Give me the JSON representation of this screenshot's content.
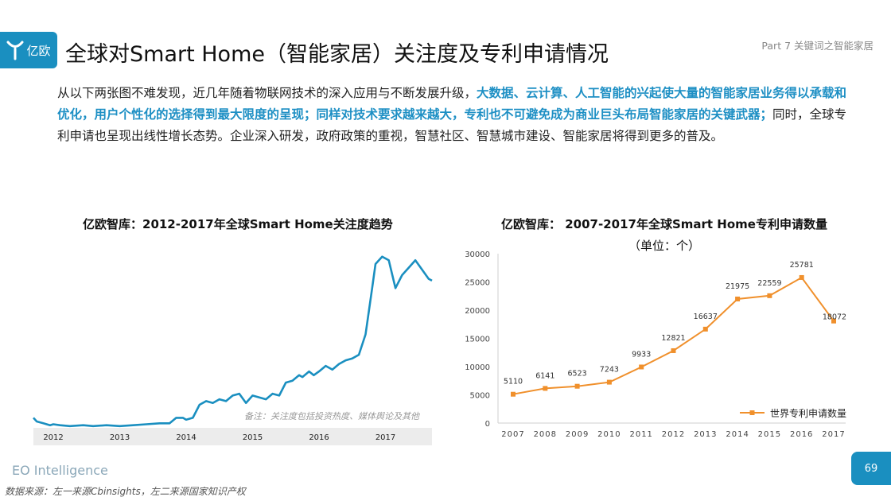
{
  "header": {
    "logo_text": "亿欧",
    "title": "全球对Smart Home（智能家居）关注度及专利申请情况",
    "part_label": "Part 7 关键词之智能家居"
  },
  "paragraph": {
    "segments": [
      {
        "text": "从以下两张图不难发现，近几年随着物联网技术的深入应用与不断发展升级，",
        "highlight": false
      },
      {
        "text": "大数据、云计算、人工智能的兴起使大量的智能家居业务得以承载和优化，用户个性化的选择得到最大限度的呈现；同样对技术要求越来越大，专利也不可避免成为商业巨头布局智能家居的关键武器；",
        "highlight": true
      },
      {
        "text": "同时，全球专利申请也呈现出线性增长态势。企业深入研发，政府政策的重视，智慧社区、智慧城市建设、智能家居将得到更多的普及。",
        "highlight": false
      }
    ]
  },
  "colors": {
    "accent": "#1a8fc0",
    "highlight_text": "#1d8fc4",
    "line_blue": "#1a8fc0",
    "line_orange": "#f0902c"
  },
  "chart_data": [
    {
      "type": "line",
      "title": "亿欧智库：2012-2017年全球Smart Home关注度趋势",
      "x_ticks": [
        "2012",
        "2013",
        "2014",
        "2015",
        "2016",
        "2017"
      ],
      "annotation": "备注：关注度包括投资热度、媒体舆论及其他",
      "y_axis_shown": false,
      "grid": false,
      "series": [
        {
          "x": [
            2011.7,
            2011.75,
            2011.85,
            2011.95,
            2012.0,
            2012.1,
            2012.25,
            2012.45,
            2012.6,
            2012.8,
            2013.0,
            2013.2,
            2013.4,
            2013.6,
            2013.75,
            2013.85,
            2013.95,
            2014.0,
            2014.1,
            2014.2,
            2014.3,
            2014.4,
            2014.5,
            2014.6,
            2014.7,
            2014.8,
            2014.9,
            2015.0,
            2015.1,
            2015.2,
            2015.3,
            2015.4,
            2015.5,
            2015.6,
            2015.7,
            2015.75,
            2015.85,
            2015.92,
            2016.0,
            2016.1,
            2016.2,
            2016.3,
            2016.4,
            2016.5,
            2016.6,
            2016.7,
            2016.8,
            2016.85,
            2016.95,
            2017.05,
            2017.15,
            2017.25,
            2017.35,
            2017.45,
            2017.55,
            2017.65,
            2017.7
          ],
          "values": [
            5,
            3,
            2,
            1,
            1.5,
            1,
            0.5,
            1,
            0.5,
            1,
            0.5,
            1,
            1.5,
            2,
            2,
            5,
            5,
            4,
            5,
            12,
            14,
            13,
            15,
            14,
            17,
            18,
            13,
            17,
            16,
            15,
            18,
            17,
            24,
            25,
            28,
            27,
            30,
            28,
            30,
            33,
            31,
            34,
            36,
            37,
            39,
            50,
            75,
            88,
            92,
            90,
            75,
            82,
            86,
            90,
            85,
            80,
            79
          ]
        }
      ]
    },
    {
      "type": "line",
      "title": "亿欧智库： 2007-2017年全球Smart Home专利申请数量",
      "subtitle": "（单位：个）",
      "categories": [
        "2007",
        "2008",
        "2009",
        "2010",
        "2011",
        "2012",
        "2013",
        "2014",
        "2015",
        "2016",
        "2017"
      ],
      "ylim": [
        0,
        30000
      ],
      "yticks": [
        0,
        5000,
        10000,
        15000,
        20000,
        25000,
        30000
      ],
      "grid": false,
      "legend_position": "bottom-right",
      "series": [
        {
          "name": "世界专利申请数量",
          "values": [
            5110,
            6141,
            6523,
            7243,
            9933,
            12821,
            16637,
            21975,
            22559,
            25781,
            18072
          ]
        }
      ]
    }
  ],
  "footer": {
    "brand": "EO Intelligence",
    "source": "数据来源：左一来源Cbinsights，左二来源国家知识产权",
    "page": "69"
  }
}
